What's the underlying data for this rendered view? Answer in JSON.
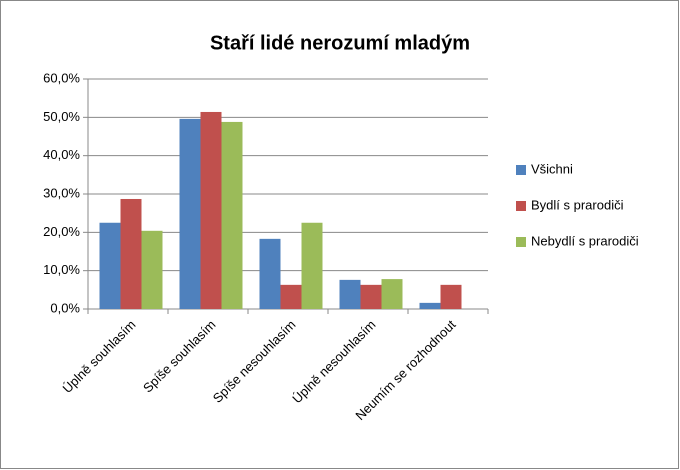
{
  "chart_data": {
    "type": "bar",
    "title": "Staří lidé nerozumí mladým",
    "categories": [
      "Úplně souhlasím",
      "Spíše souhlasím",
      "Spíše nesouhlasím",
      "Úplně nesouhlasím",
      "Neumím se rozhodnout"
    ],
    "series": [
      {
        "name": "Všichni",
        "color": "#4f81bd",
        "values": [
          22.5,
          49.6,
          18.3,
          7.6,
          1.6
        ]
      },
      {
        "name": "Bydlí s prarodiči",
        "color": "#c0504d",
        "values": [
          28.7,
          51.4,
          6.3,
          6.3,
          6.3
        ]
      },
      {
        "name": "Nebydlí s prarodiči",
        "color": "#9bbb59",
        "values": [
          20.4,
          48.8,
          22.5,
          7.8,
          0
        ]
      }
    ],
    "ylim": [
      0,
      60
    ],
    "yticks": [
      {
        "value": 0,
        "label": "0,0%"
      },
      {
        "value": 10,
        "label": "10,0%"
      },
      {
        "value": 20,
        "label": "20,0%"
      },
      {
        "value": 30,
        "label": "30,0%"
      },
      {
        "value": 40,
        "label": "40,0%"
      },
      {
        "value": 50,
        "label": "50,0%"
      },
      {
        "value": 60,
        "label": "60,0%"
      }
    ],
    "grid": true,
    "legend": "right"
  }
}
